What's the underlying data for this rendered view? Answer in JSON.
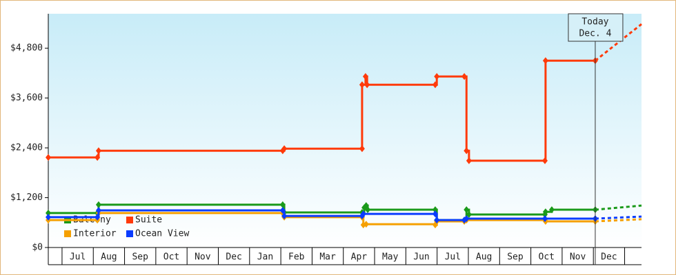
{
  "chart_data": {
    "type": "step-line",
    "xlim": [
      -0.44,
      18.54
    ],
    "xticks": [
      {
        "value": 0.5,
        "label": "Jul"
      },
      {
        "value": 1.5,
        "label": "Aug"
      },
      {
        "value": 2.5,
        "label": "Sep"
      },
      {
        "value": 3.5,
        "label": "Oct"
      },
      {
        "value": 4.5,
        "label": "Nov"
      },
      {
        "value": 5.5,
        "label": "Dec"
      },
      {
        "value": 6.5,
        "label": "Jan"
      },
      {
        "value": 7.5,
        "label": "Feb"
      },
      {
        "value": 8.5,
        "label": "Mar"
      },
      {
        "value": 9.5,
        "label": "Apr"
      },
      {
        "value": 10.5,
        "label": "May"
      },
      {
        "value": 11.5,
        "label": "Jun"
      },
      {
        "value": 12.5,
        "label": "Jul"
      },
      {
        "value": 13.5,
        "label": "Aug"
      },
      {
        "value": 14.5,
        "label": "Sep"
      },
      {
        "value": 15.5,
        "label": "Oct"
      },
      {
        "value": 16.5,
        "label": "Nov"
      },
      {
        "value": 17.5,
        "label": "Dec"
      }
    ],
    "ylim": [
      0,
      5630
    ],
    "yticks": [
      {
        "value": 0,
        "label": "$0"
      },
      {
        "value": 1200,
        "label": "$1,200"
      },
      {
        "value": 2400,
        "label": "$2,400"
      },
      {
        "value": 3600,
        "label": "$3,600"
      },
      {
        "value": 4800,
        "label": "$4,800"
      }
    ],
    "annotation": {
      "x": 17.06,
      "lines": [
        "Today",
        "Dec. 4"
      ]
    },
    "series": [
      {
        "name": "Balcony",
        "color": "#1a9a1a",
        "x": [
          -0.44,
          1.13,
          1.17,
          7.06,
          7.11,
          9.6,
          9.67,
          9.73,
          9.78,
          11.94,
          11.99,
          12.87,
          12.94,
          13.02,
          15.45,
          15.47,
          15.67,
          17.06
        ],
        "values": [
          830,
          830,
          1030,
          1030,
          845,
          845,
          960,
          1010,
          910,
          910,
          660,
          660,
          910,
          795,
          795,
          860,
          910,
          910
        ],
        "forecast": {
          "x": 18.54,
          "value": 1010
        }
      },
      {
        "name": "Suite",
        "color": "#ff3a0a",
        "x": [
          -0.44,
          1.13,
          1.17,
          7.06,
          7.11,
          9.6,
          9.6,
          9.71,
          9.76,
          11.94,
          11.99,
          12.87,
          12.94,
          13.02,
          15.45,
          15.47,
          17.06
        ],
        "values": [
          2170,
          2170,
          2330,
          2330,
          2380,
          2380,
          3920,
          4120,
          3920,
          3920,
          4120,
          4120,
          2330,
          2090,
          2090,
          4500,
          4500
        ],
        "forecast": {
          "x": 18.54,
          "value": 5380
        }
      },
      {
        "name": "Interior",
        "color": "#f5a000",
        "x": [
          -0.44,
          1.13,
          1.17,
          7.06,
          7.11,
          9.6,
          9.64,
          9.73,
          11.94,
          11.99,
          12.87,
          12.94,
          15.45,
          15.47,
          17.06
        ],
        "values": [
          660,
          660,
          830,
          830,
          730,
          730,
          545,
          560,
          545,
          630,
          630,
          660,
          660,
          630,
          630
        ],
        "forecast": {
          "x": 18.54,
          "value": 680
        }
      },
      {
        "name": "Ocean View",
        "color": "#0a3cff",
        "x": [
          -0.44,
          1.13,
          1.17,
          7.06,
          7.11,
          9.6,
          9.64,
          11.94,
          11.99,
          12.87,
          12.94,
          15.45,
          17.06
        ],
        "values": [
          730,
          730,
          895,
          895,
          760,
          760,
          810,
          810,
          660,
          660,
          695,
          695,
          695
        ],
        "forecast": {
          "x": 18.54,
          "value": 745
        }
      }
    ]
  }
}
